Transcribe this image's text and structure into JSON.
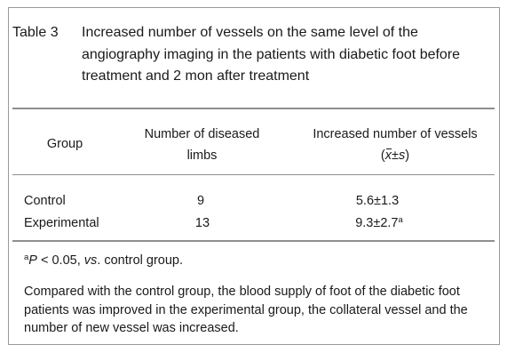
{
  "caption": {
    "label": "Table 3",
    "text": "Increased number of vessels on the same level of the angiography imaging in the patients with diabetic foot before treatment and 2 mon after treatment"
  },
  "header": {
    "group": "Group",
    "limbs_line1": "Number of diseased",
    "limbs_line2": "limbs",
    "vessels_line1": "Increased number of vessels",
    "vessels_mean": "x",
    "vessels_rest": "±s",
    "open_paren": "(",
    "close_paren": ")"
  },
  "rows": [
    {
      "group": "Control",
      "limbs": "9",
      "vessels": "5.6±1.3",
      "sup": ""
    },
    {
      "group": "Experimental",
      "limbs": "13",
      "vessels": "9.3±2.7",
      "sup": "a"
    }
  ],
  "footnote": {
    "sup": "a",
    "p_symbol": "P",
    "p_text": " < 0.05, ",
    "vs": "vs",
    "rest": ". control group."
  },
  "summary": "Compared with the control group, the blood supply of foot of the diabetic foot patients was improved in the experimental group, the collateral vessel and the number of new vessel was increased."
}
